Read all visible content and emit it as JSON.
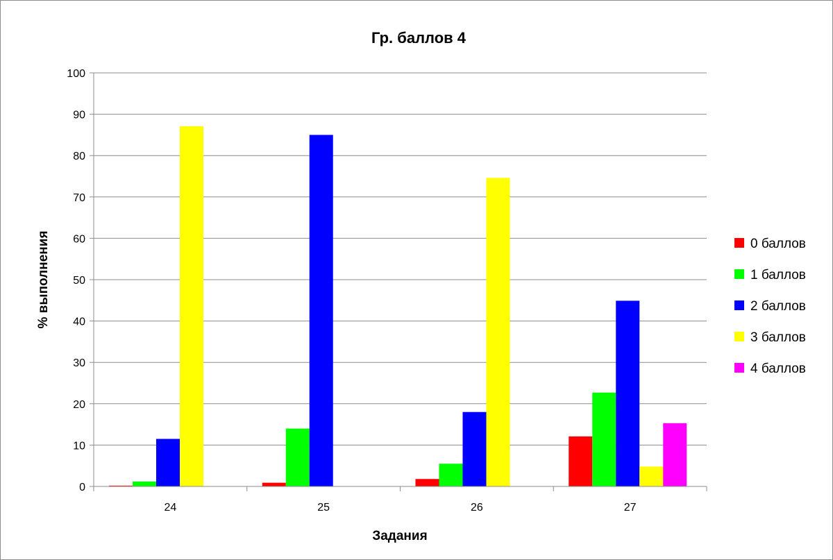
{
  "chart_data": {
    "type": "bar",
    "title": "Гр. баллов 4",
    "xlabel": "Задания",
    "ylabel": "% выполнения",
    "categories": [
      "24",
      "25",
      "26",
      "27"
    ],
    "ylim": [
      0,
      100
    ],
    "yticks": [
      0,
      10,
      20,
      30,
      40,
      50,
      60,
      70,
      80,
      90,
      100
    ],
    "grid": true,
    "legend_position": "right",
    "series": [
      {
        "name": "0 баллов",
        "color": "#ff0000",
        "values": [
          0.2,
          0.9,
          1.8,
          12.1
        ]
      },
      {
        "name": "1 баллов",
        "color": "#00ff00",
        "values": [
          1.2,
          14.0,
          5.5,
          22.7
        ]
      },
      {
        "name": "2 баллов",
        "color": "#0000ff",
        "values": [
          11.5,
          85.0,
          18.0,
          44.9
        ]
      },
      {
        "name": "3 баллов",
        "color": "#ffff00",
        "values": [
          87.1,
          0,
          74.6,
          4.8
        ]
      },
      {
        "name": "4 баллов",
        "color": "#ff00ff",
        "values": [
          0,
          0,
          0,
          15.3
        ]
      }
    ]
  }
}
